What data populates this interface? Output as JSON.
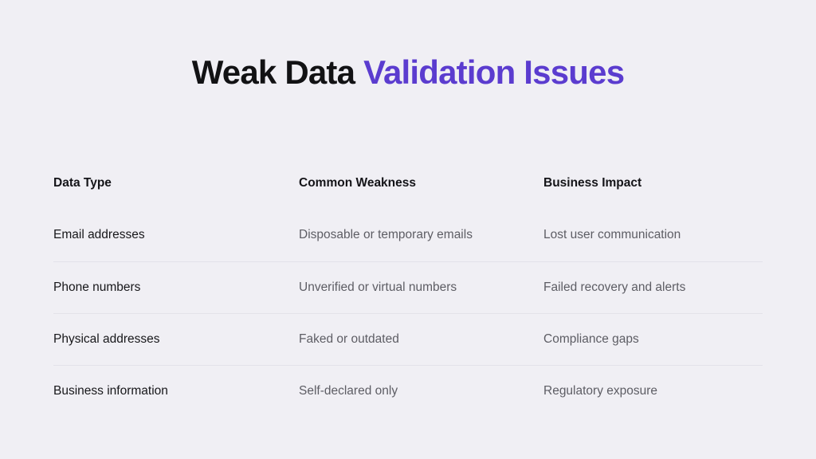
{
  "title": {
    "primary": "Weak Data",
    "accent": "Validation Issues"
  },
  "colors": {
    "background": "#f0eff4",
    "accent_purple": "#5b3ccf",
    "heading_text": "#141418",
    "muted_text": "#5d5d64",
    "divider": "#e3e2e9"
  },
  "table": {
    "headers": [
      "Data Type",
      "Common Weakness",
      "Business Impact"
    ],
    "rows": [
      [
        "Email addresses",
        "Disposable or temporary emails",
        "Lost user communication"
      ],
      [
        "Phone numbers",
        "Unverified or virtual numbers",
        "Failed recovery and alerts"
      ],
      [
        "Physical addresses",
        "Faked or outdated",
        "Compliance gaps"
      ],
      [
        "Business information",
        "Self-declared only",
        "Regulatory exposure"
      ]
    ]
  }
}
